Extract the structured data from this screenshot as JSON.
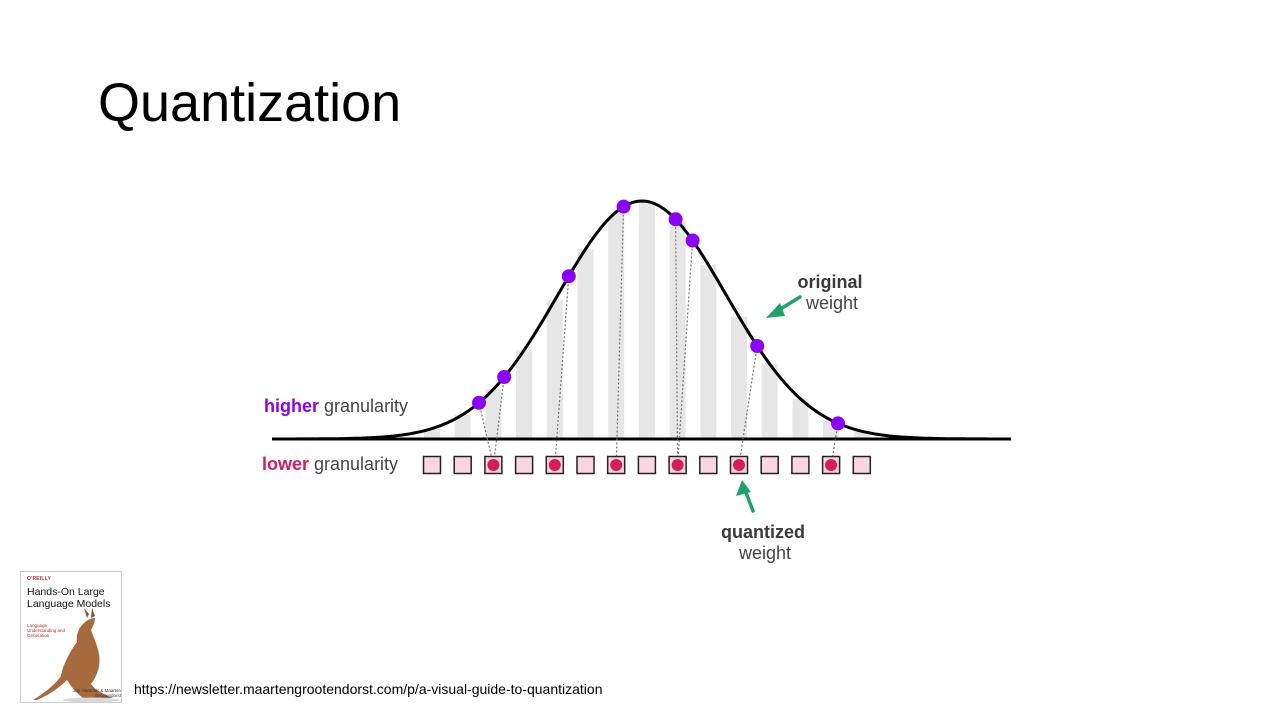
{
  "slide": {
    "title": "Quantization"
  },
  "diagram": {
    "higher_label": {
      "strong": "higher",
      "rest": " granularity"
    },
    "lower_label": {
      "strong": "lower",
      "rest": " granularity"
    },
    "original_weight": {
      "line1": "original",
      "line2": "weight"
    },
    "quantized_weight": {
      "line1": "quantized",
      "line2": "weight"
    },
    "colors": {
      "curve": "#000000",
      "original_point": "#8b00ff",
      "quantized_point": "#d81b5a",
      "bin_fill": "#f9d6e2",
      "bar_fill": "#e6e6e6",
      "arrow": "#1ba36b",
      "higher_text": "#8b00ff",
      "lower_text": "#d81b5a"
    },
    "bin_count": 15,
    "mappings": [
      {
        "original": 0.0,
        "bin": 2
      },
      {
        "original": 0.034,
        "bin": 2
      },
      {
        "original": 0.121,
        "bin": 4
      },
      {
        "original": 0.195,
        "bin": 6
      },
      {
        "original": 0.265,
        "bin": 8
      },
      {
        "original": 0.288,
        "bin": 8
      },
      {
        "original": 0.375,
        "bin": 10
      },
      {
        "original": 0.484,
        "bin": 13
      }
    ]
  },
  "book": {
    "publisher": "O'REILLY",
    "title": "Hands-On Large Language Models",
    "subtitle": "Language Understanding and Generation",
    "authors": "Jay Alammar & Maarten Grootendorst"
  },
  "source": {
    "url": "https://newsletter.maartengrootendorst.com/p/a-visual-guide-to-quantization"
  }
}
